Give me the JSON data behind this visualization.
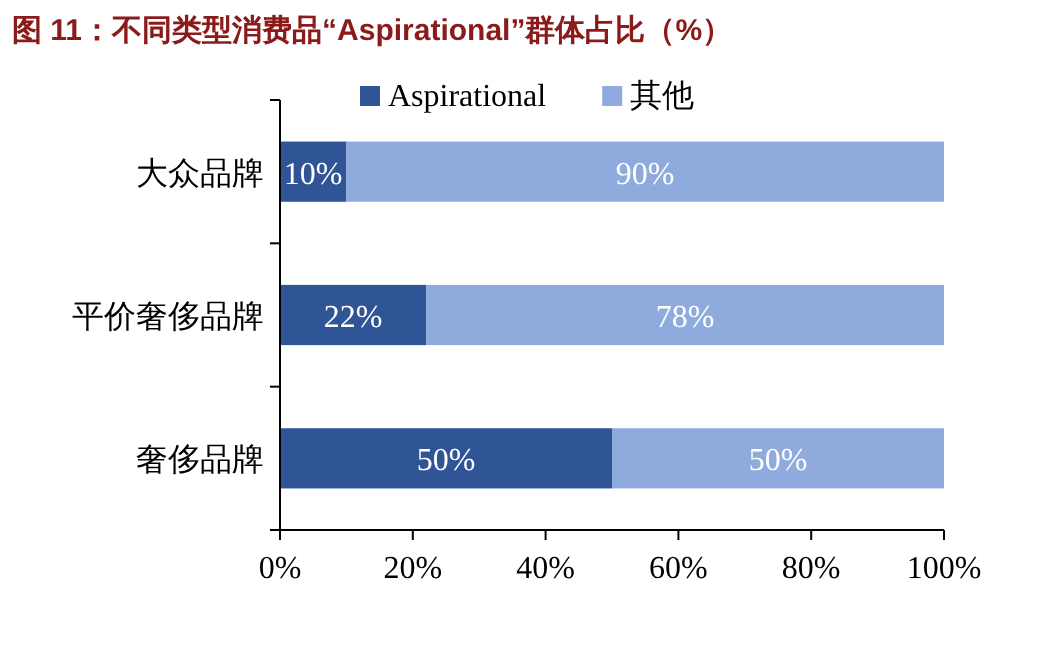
{
  "chart_data": {
    "type": "bar",
    "orientation": "horizontal",
    "stacked": true,
    "title": "图 11：不同类型消费品“Aspirational”群体占比（%）",
    "categories": [
      "大众品牌",
      "平价奢侈品牌",
      "奢侈品牌"
    ],
    "series": [
      {
        "name": "Aspirational",
        "color": "#2f5597",
        "values": [
          10,
          22,
          50
        ],
        "value_labels": [
          "10%",
          "22%",
          "50%"
        ]
      },
      {
        "name": "其他",
        "color": "#8faadc",
        "values": [
          90,
          78,
          50
        ],
        "value_labels": [
          "90%",
          "78%",
          "50%"
        ]
      }
    ],
    "xlim": [
      0,
      100
    ],
    "xticks": [
      {
        "value": 0,
        "label": "0%"
      },
      {
        "value": 20,
        "label": "20%"
      },
      {
        "value": 40,
        "label": "40%"
      },
      {
        "value": 60,
        "label": "60%"
      },
      {
        "value": 80,
        "label": "80%"
      },
      {
        "value": 100,
        "label": "100%"
      }
    ],
    "legend": "top",
    "grid": false
  }
}
